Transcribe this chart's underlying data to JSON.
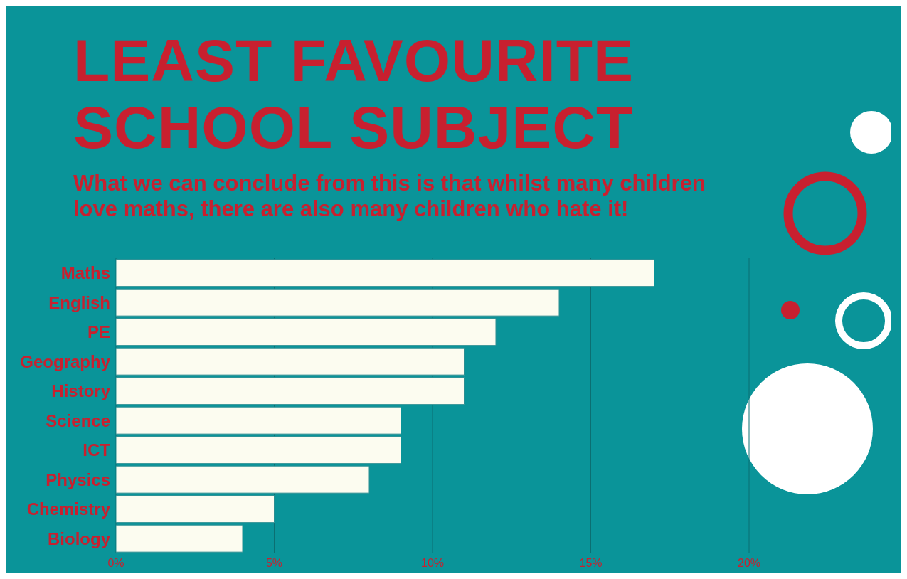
{
  "chart_data": {
    "type": "bar",
    "orientation": "horizontal",
    "title": "LEAST FAVOURITE SCHOOL SUBJECT",
    "subtitle": "What we can conclude from this is that whilst many children love maths, there are also many children who hate it!",
    "categories": [
      "Maths",
      "English",
      "PE",
      "Geography",
      "History",
      "Science",
      "ICT",
      "Physics",
      "Chemistry",
      "Biology"
    ],
    "values": [
      17,
      14,
      12,
      11,
      11,
      9,
      9,
      8,
      5,
      4
    ],
    "color": "#fcfcf0",
    "xlim": [
      0,
      20
    ],
    "xticks": [
      {
        "value": 0,
        "label": "0%"
      },
      {
        "value": 5,
        "label": "5%"
      },
      {
        "value": 10,
        "label": "10%"
      },
      {
        "value": 15,
        "label": "15%"
      },
      {
        "value": 20,
        "label": "20%"
      }
    ],
    "grid": "x"
  }
}
